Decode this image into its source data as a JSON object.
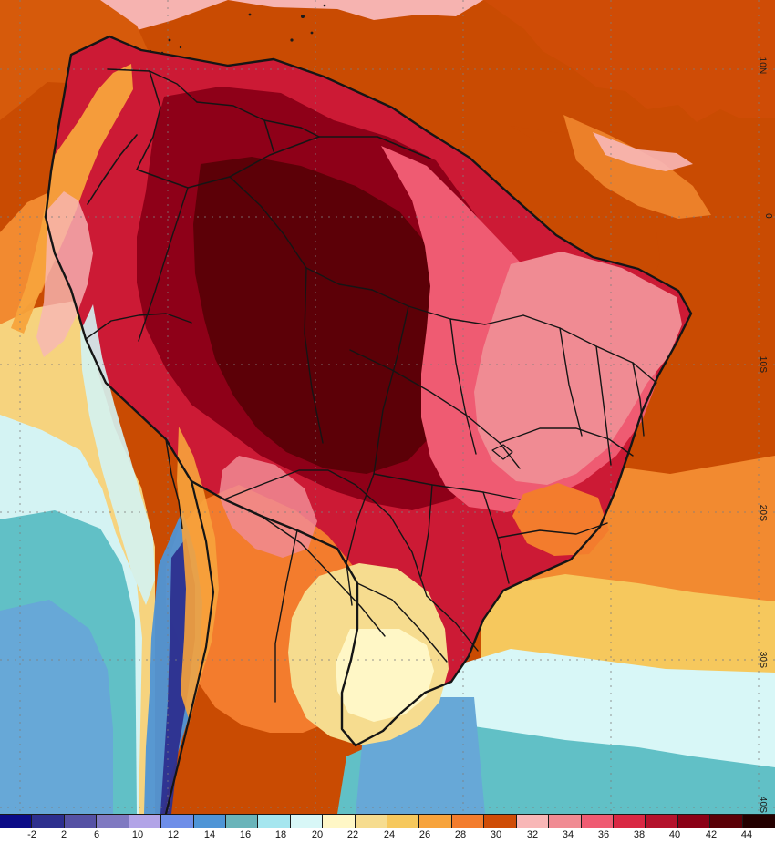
{
  "map": {
    "colors": {
      "background_ocean_hot": "#c94b02",
      "ocean_warm": "#f28a30",
      "ocean_pink": "#f8b7b7",
      "land_hot": "#8e0018",
      "land_very_hot": "#5c0007",
      "land_red": "#cc1a35",
      "land_pink": "#f06b79",
      "land_orange": "#f07a1e",
      "land_yellow": "#f6d37e",
      "land_pale": "#fff6c8",
      "cold_blue": "#67a8d7",
      "cold_teal": "#61c0c6",
      "cold_ice": "#d4f3f3",
      "border_line": "#151515",
      "grid_line": "#7e7e7e"
    },
    "latitude_labels": {
      "lat_10n": "10N",
      "lat_0": "0",
      "lat_10s": "10S",
      "lat_20s": "20S",
      "lat_30s": "30S",
      "lat_40s": "40S"
    }
  },
  "legend": {
    "labels": [
      "-2",
      "2",
      "6",
      "10",
      "12",
      "14",
      "16",
      "18",
      "20",
      "22",
      "24",
      "26",
      "28",
      "30",
      "32",
      "34",
      "36",
      "38",
      "40",
      "42",
      "44"
    ],
    "colors": [
      "#0b0b87",
      "#2d2f8e",
      "#5551a4",
      "#7f79c1",
      "#b2a4e7",
      "#6e8ee8",
      "#4f95d6",
      "#6ab4ba",
      "#a5e6ef",
      "#d8f7f7",
      "#fff7c6",
      "#f6dc8f",
      "#f6c85d",
      "#f7a33c",
      "#f37c2d",
      "#cf4c06",
      "#f8b7b7",
      "#f08b93",
      "#ef5b72",
      "#d92844",
      "#b4122c",
      "#8a0016",
      "#5b0007",
      "#240000"
    ]
  }
}
